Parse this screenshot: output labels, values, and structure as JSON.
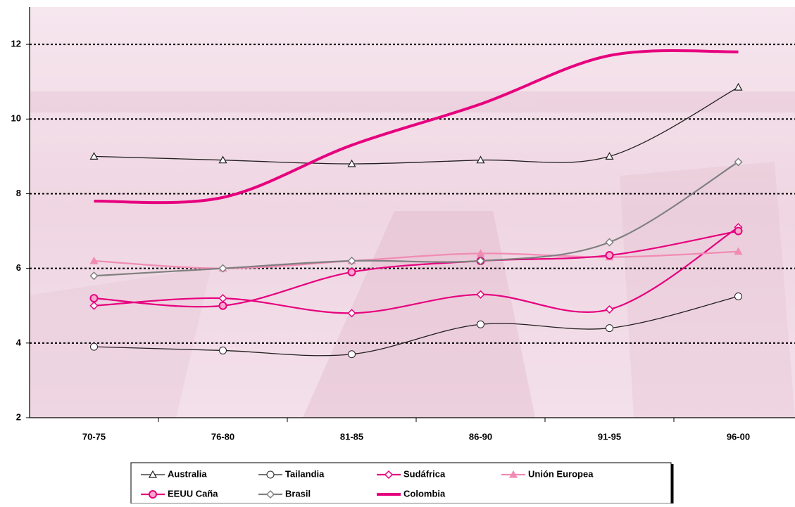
{
  "chart_data": {
    "type": "line",
    "categories": [
      "70-75",
      "76-80",
      "81-85",
      "86-90",
      "91-95",
      "96-00"
    ],
    "series": [
      {
        "name": "Australia",
        "color": "#231f20",
        "marker": "triangle",
        "values": [
          9.0,
          8.9,
          8.8,
          8.9,
          9.0,
          10.85
        ]
      },
      {
        "name": "Tailandia",
        "color": "#231f20",
        "marker": "circle",
        "values": [
          3.9,
          3.8,
          3.7,
          4.5,
          4.4,
          5.25
        ]
      },
      {
        "name": "Sudáfrica",
        "color": "#e6007e",
        "marker": "diamond",
        "values": [
          5.0,
          5.2,
          4.8,
          5.3,
          4.9,
          7.1
        ]
      },
      {
        "name": "Unión Europea",
        "color": "#f08cb4",
        "marker": "filled-triangle",
        "values": [
          6.2,
          6.0,
          6.2,
          6.4,
          6.3,
          6.45
        ]
      },
      {
        "name": "EEUU Caña",
        "color": "#e6007e",
        "marker": "filled-circle",
        "values": [
          5.2,
          5.0,
          5.9,
          6.2,
          6.35,
          7.0
        ]
      },
      {
        "name": "Brasil",
        "color": "#808080",
        "marker": "diamond",
        "values": [
          5.8,
          6.0,
          6.2,
          6.2,
          6.7,
          8.85
        ]
      },
      {
        "name": "Colombia",
        "color": "#e6007e",
        "marker": "none",
        "values": [
          7.8,
          7.9,
          9.3,
          10.4,
          11.7,
          11.8
        ]
      }
    ],
    "ylim": [
      2,
      13
    ],
    "yticks": [
      2,
      4,
      6,
      8,
      10,
      12
    ],
    "grid": true,
    "legend": "bottom"
  }
}
